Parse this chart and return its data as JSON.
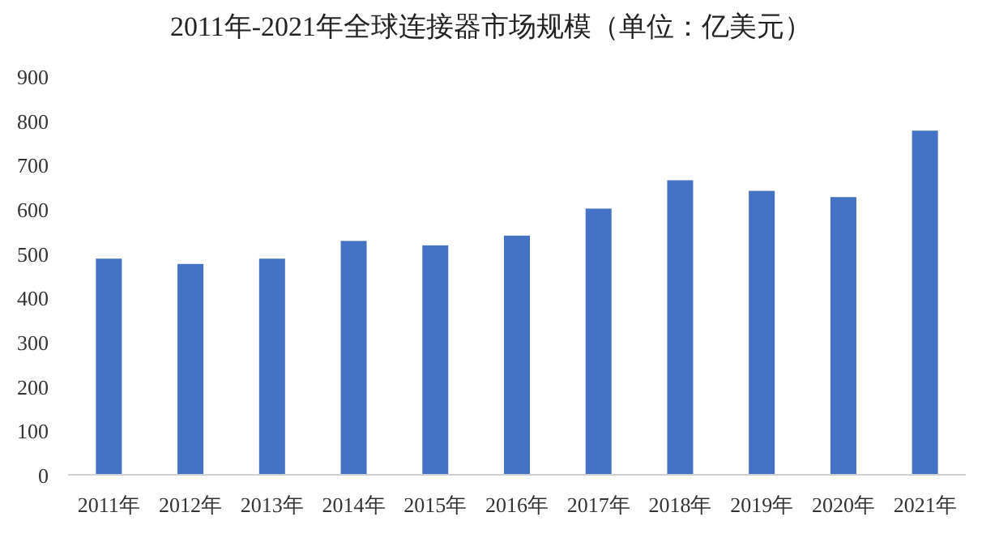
{
  "chart_data": {
    "type": "bar",
    "title": "2011年-2021年全球连接器市场规模（单位：亿美元）",
    "categories": [
      "2011年",
      "2012年",
      "2013年",
      "2014年",
      "2015年",
      "2016年",
      "2017年",
      "2018年",
      "2019年",
      "2020年",
      "2021年"
    ],
    "values": [
      488,
      476,
      488,
      528,
      518,
      540,
      601,
      665,
      641,
      627,
      777
    ],
    "color": "#4472c4",
    "ylim": [
      0,
      900
    ],
    "yticks": [
      0,
      100,
      200,
      300,
      400,
      500,
      600,
      700,
      800,
      900
    ],
    "grid": false
  }
}
